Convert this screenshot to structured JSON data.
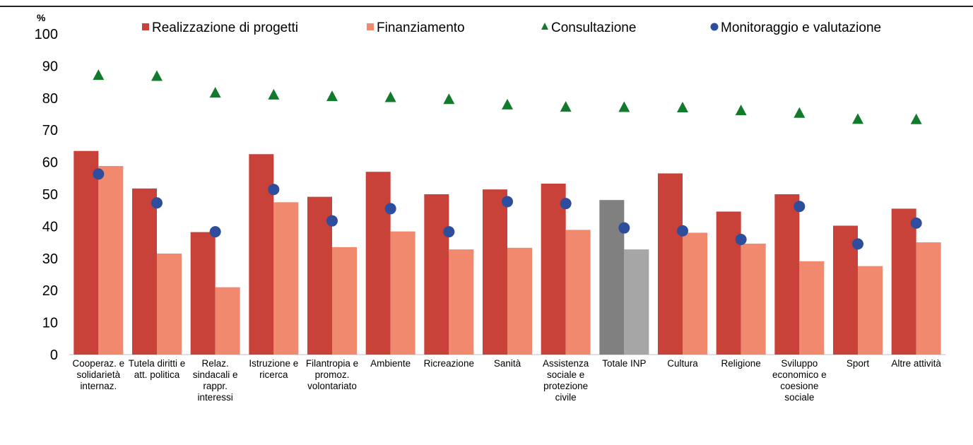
{
  "chart_data": {
    "type": "bar",
    "ylabel": "%",
    "ylim": [
      0,
      100
    ],
    "yticks": [
      "0",
      "10",
      "20",
      "30",
      "40",
      "50",
      "60",
      "70",
      "80",
      "90",
      "100"
    ],
    "categories": [
      [
        "Cooperaz. e",
        "solidarietà",
        "internaz."
      ],
      [
        "Tutela diritti e",
        "att. politica"
      ],
      [
        "Relaz.",
        "sindacali e",
        "rappr.",
        "interessi"
      ],
      [
        "Istruzione e",
        "ricerca"
      ],
      [
        "Filantropia e",
        "promoz.",
        "volontariato"
      ],
      [
        "Ambiente"
      ],
      [
        "Ricreazione"
      ],
      [
        "Sanità"
      ],
      [
        "Assistenza",
        "sociale e",
        "protezione",
        "civile"
      ],
      [
        "Totale INP"
      ],
      [
        "Cultura"
      ],
      [
        "Religione"
      ],
      [
        "Sviluppo",
        "economico e",
        "coesione",
        "sociale"
      ],
      [
        "Sport"
      ],
      [
        "Altre attività"
      ]
    ],
    "highlight_category": "Totale INP",
    "legend_placement": "top",
    "series": [
      {
        "name": "Realizzazione di progetti",
        "kind": "bar",
        "color": "#c8423a",
        "highlight_color": "#808080",
        "values": [
          63.5,
          51.8,
          38.2,
          62.5,
          49.2,
          57.0,
          50.0,
          51.5,
          53.3,
          48.2,
          56.5,
          44.6,
          50.0,
          40.2,
          45.5
        ]
      },
      {
        "name": "Finanziamento",
        "kind": "bar",
        "color": "#f0896e",
        "highlight_color": "#a6a6a6",
        "values": [
          58.8,
          31.5,
          21.0,
          47.5,
          33.5,
          38.4,
          32.8,
          33.3,
          38.9,
          32.8,
          38.0,
          34.6,
          29.1,
          27.6,
          35.0
        ]
      },
      {
        "name": "Consultazione",
        "kind": "marker",
        "marker": "triangle",
        "color": "#127a2c",
        "values": [
          87.3,
          87.0,
          81.8,
          81.2,
          80.7,
          80.4,
          79.8,
          78.1,
          77.4,
          77.3,
          77.2,
          76.3,
          75.5,
          73.6,
          73.5
        ]
      },
      {
        "name": "Monitoraggio e valutazione",
        "kind": "marker",
        "marker": "circle",
        "color": "#2e4d9c",
        "values": [
          56.3,
          47.3,
          38.3,
          51.5,
          41.7,
          45.5,
          38.3,
          47.7,
          47.1,
          39.5,
          38.6,
          35.9,
          46.2,
          34.5,
          41.0
        ]
      }
    ]
  }
}
